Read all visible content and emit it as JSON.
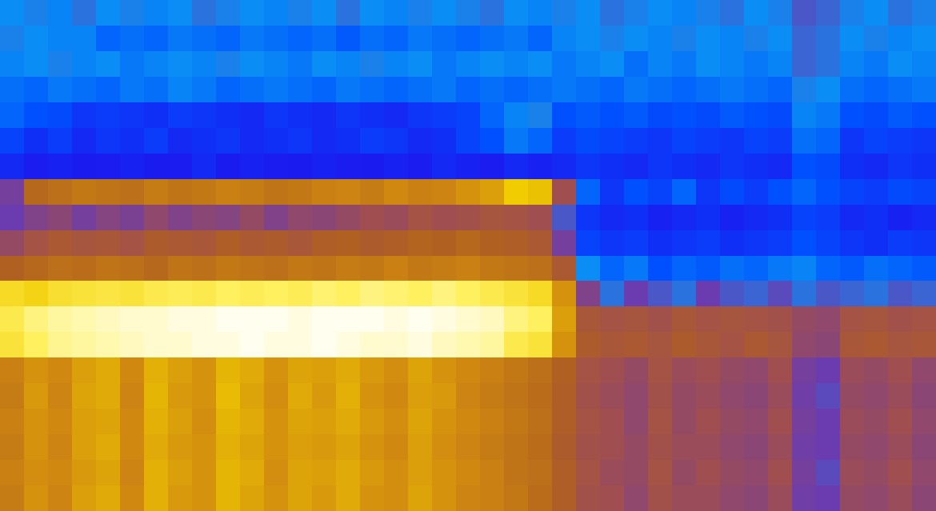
{
  "chart_data": {
    "type": "heatmap",
    "tick_labels": false,
    "zlim": [
      0,
      100
    ],
    "cells": [
      [
        34,
        35,
        33,
        36,
        34,
        35,
        33,
        34,
        36,
        35,
        34,
        33,
        35,
        34,
        36,
        34,
        33,
        35,
        34,
        35,
        36,
        34,
        33,
        35,
        34,
        36,
        35,
        34,
        33,
        35,
        36,
        34,
        35,
        38,
        37,
        35,
        34,
        36,
        35
      ],
      [
        35,
        34,
        33,
        33,
        30,
        31,
        30,
        32,
        31,
        30,
        32,
        31,
        30,
        31,
        29,
        31,
        30,
        32,
        31,
        30,
        31,
        32,
        30,
        33,
        34,
        35,
        34,
        33,
        35,
        34,
        33,
        35,
        34,
        37,
        36,
        34,
        35,
        33,
        34
      ],
      [
        33,
        34,
        35,
        33,
        34,
        32,
        33,
        34,
        33,
        35,
        34,
        33,
        32,
        34,
        33,
        35,
        33,
        34,
        32,
        33,
        34,
        33,
        34,
        32,
        33,
        34,
        31,
        33,
        32,
        34,
        33,
        32,
        33,
        37,
        36,
        33,
        32,
        34,
        33
      ],
      [
        31,
        30,
        32,
        31,
        30,
        32,
        31,
        33,
        32,
        30,
        31,
        32,
        31,
        30,
        32,
        31,
        30,
        31,
        32,
        30,
        31,
        30,
        31,
        32,
        31,
        30,
        32,
        31,
        30,
        31,
        32,
        31,
        30,
        35,
        34,
        31,
        30,
        31,
        32
      ],
      [
        30,
        28,
        27,
        24,
        25,
        24,
        23,
        25,
        24,
        23,
        22,
        24,
        23,
        22,
        24,
        23,
        22,
        24,
        25,
        26,
        30,
        33,
        35,
        28,
        29,
        28,
        29,
        27,
        28,
        27,
        29,
        28,
        27,
        33,
        32,
        28,
        27,
        29,
        28
      ],
      [
        26,
        23,
        25,
        22,
        24,
        23,
        25,
        22,
        23,
        24,
        22,
        23,
        24,
        22,
        23,
        25,
        24,
        22,
        23,
        26,
        28,
        32,
        30,
        25,
        27,
        26,
        25,
        24,
        26,
        25,
        24,
        26,
        25,
        31,
        30,
        24,
        26,
        25,
        24
      ],
      [
        22,
        20,
        21,
        19,
        20,
        21,
        19,
        20,
        22,
        19,
        21,
        20,
        19,
        21,
        20,
        19,
        21,
        20,
        22,
        21,
        20,
        22,
        21,
        22,
        24,
        23,
        22,
        24,
        23,
        22,
        24,
        23,
        22,
        28,
        27,
        23,
        22,
        24,
        23
      ],
      [
        42,
        60,
        62,
        64,
        63,
        62,
        65,
        63,
        64,
        66,
        65,
        63,
        64,
        66,
        67,
        65,
        68,
        66,
        67,
        70,
        72,
        80,
        78,
        50,
        30,
        24,
        28,
        26,
        30,
        24,
        27,
        25,
        28,
        30,
        28,
        26,
        25,
        27,
        26
      ],
      [
        40,
        44,
        46,
        42,
        45,
        43,
        47,
        44,
        46,
        45,
        48,
        44,
        47,
        46,
        48,
        50,
        49,
        52,
        50,
        51,
        53,
        52,
        50,
        38,
        24,
        22,
        23,
        21,
        22,
        23,
        21,
        22,
        23,
        26,
        25,
        22,
        23,
        21,
        22
      ],
      [
        48,
        52,
        55,
        53,
        54,
        52,
        56,
        55,
        54,
        57,
        55,
        56,
        54,
        57,
        58,
        56,
        57,
        59,
        58,
        60,
        58,
        57,
        55,
        42,
        26,
        24,
        25,
        23,
        24,
        25,
        23,
        24,
        25,
        28,
        26,
        24,
        23,
        25,
        24
      ],
      [
        58,
        60,
        62,
        61,
        63,
        62,
        60,
        63,
        62,
        64,
        63,
        62,
        64,
        63,
        65,
        64,
        66,
        64,
        65,
        66,
        64,
        63,
        62,
        55,
        34,
        30,
        32,
        28,
        30,
        29,
        31,
        30,
        32,
        33,
        30,
        29,
        31,
        30,
        29
      ],
      [
        84,
        82,
        85,
        86,
        87,
        86,
        88,
        89,
        88,
        90,
        89,
        90,
        89,
        91,
        90,
        92,
        91,
        90,
        92,
        90,
        88,
        86,
        84,
        70,
        44,
        36,
        40,
        38,
        36,
        40,
        38,
        37,
        39,
        36,
        38,
        37,
        36,
        38,
        37
      ],
      [
        88,
        92,
        94,
        95,
        96,
        97,
        97,
        98,
        98,
        99,
        99,
        99,
        98,
        99,
        99,
        99,
        98,
        99,
        98,
        97,
        96,
        92,
        90,
        72,
        54,
        52,
        53,
        51,
        54,
        52,
        53,
        52,
        51,
        48,
        47,
        52,
        53,
        51,
        52
      ],
      [
        86,
        90,
        93,
        94,
        95,
        96,
        97,
        97,
        98,
        98,
        99,
        98,
        98,
        99,
        98,
        97,
        97,
        98,
        96,
        95,
        94,
        88,
        86,
        70,
        56,
        54,
        55,
        53,
        56,
        54,
        52,
        55,
        53,
        47,
        46,
        54,
        55,
        53,
        54
      ],
      [
        66,
        70,
        68,
        72,
        74,
        68,
        75,
        72,
        70,
        76,
        74,
        70,
        73,
        72,
        74,
        71,
        69,
        73,
        70,
        68,
        66,
        64,
        62,
        58,
        52,
        50,
        48,
        52,
        49,
        50,
        48,
        47,
        50,
        42,
        40,
        49,
        48,
        50,
        47
      ],
      [
        65,
        71,
        67,
        73,
        74,
        67,
        76,
        71,
        70,
        77,
        73,
        69,
        74,
        71,
        75,
        70,
        68,
        72,
        71,
        67,
        65,
        63,
        61,
        57,
        51,
        49,
        47,
        51,
        48,
        49,
        47,
        46,
        49,
        41,
        39,
        48,
        47,
        49,
        46
      ],
      [
        66,
        70,
        68,
        72,
        73,
        68,
        75,
        72,
        69,
        76,
        74,
        70,
        73,
        72,
        74,
        71,
        69,
        73,
        70,
        68,
        66,
        64,
        62,
        57,
        52,
        50,
        47,
        52,
        48,
        50,
        48,
        47,
        50,
        42,
        40,
        49,
        48,
        50,
        47
      ],
      [
        65,
        70,
        67,
        72,
        74,
        68,
        74,
        71,
        70,
        75,
        73,
        70,
        72,
        71,
        73,
        70,
        68,
        72,
        69,
        67,
        65,
        63,
        61,
        56,
        51,
        50,
        48,
        51,
        49,
        49,
        47,
        46,
        49,
        41,
        40,
        48,
        47,
        49,
        46
      ],
      [
        66,
        69,
        68,
        71,
        73,
        67,
        75,
        72,
        70,
        76,
        74,
        69,
        73,
        72,
        74,
        71,
        69,
        72,
        70,
        68,
        66,
        63,
        62,
        57,
        52,
        49,
        48,
        52,
        48,
        50,
        48,
        47,
        50,
        42,
        39,
        49,
        48,
        50,
        47
      ],
      [
        65,
        70,
        67,
        72,
        74,
        68,
        75,
        71,
        70,
        76,
        73,
        70,
        73,
        71,
        74,
        70,
        69,
        73,
        70,
        67,
        66,
        64,
        61,
        57,
        51,
        50,
        47,
        51,
        49,
        49,
        47,
        46,
        49,
        41,
        40,
        48,
        47,
        49,
        46
      ]
    ]
  }
}
